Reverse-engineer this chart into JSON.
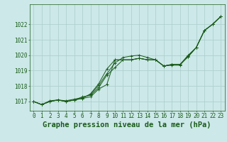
{
  "title": "Graphe pression niveau de la mer (hPa)",
  "background_color": "#cce8e8",
  "grid_color": "#aacccc",
  "line_color": "#1a5c1a",
  "marker_color": "#1a5c1a",
  "xlim": [
    -0.5,
    23.5
  ],
  "ylim": [
    1016.4,
    1023.3
  ],
  "yticks": [
    1017,
    1018,
    1019,
    1020,
    1021,
    1022
  ],
  "xticks": [
    0,
    1,
    2,
    3,
    4,
    5,
    6,
    7,
    8,
    9,
    10,
    11,
    12,
    13,
    14,
    15,
    16,
    17,
    18,
    19,
    20,
    21,
    22,
    23
  ],
  "series": [
    [
      1017.0,
      1016.8,
      1017.0,
      1017.1,
      1017.0,
      1017.1,
      1017.2,
      1017.3,
      1017.8,
      1018.1,
      1019.7,
      1019.7,
      1019.7,
      1019.8,
      1019.7,
      1019.7,
      1019.3,
      1019.4,
      1019.4,
      1019.9,
      1020.5,
      1021.6,
      1022.0,
      1022.5
    ],
    [
      1017.0,
      1016.8,
      1017.0,
      1017.1,
      1017.0,
      1017.1,
      1017.2,
      1017.5,
      1018.15,
      1019.1,
      1019.7,
      1019.7,
      1019.7,
      1019.8,
      1019.7,
      1019.7,
      1019.3,
      1019.4,
      1019.4,
      1020.0,
      1020.5,
      1021.6,
      1022.0,
      1022.5
    ],
    [
      1017.0,
      1016.8,
      1017.0,
      1017.1,
      1017.0,
      1017.1,
      1017.3,
      1017.4,
      1017.9,
      1018.7,
      1019.2,
      1019.7,
      1019.7,
      1019.8,
      1019.7,
      1019.7,
      1019.3,
      1019.4,
      1019.4,
      1019.9,
      1020.5,
      1021.6,
      1022.0,
      1022.5
    ],
    [
      1017.0,
      1016.8,
      1017.05,
      1017.1,
      1017.05,
      1017.15,
      1017.25,
      1017.45,
      1018.05,
      1018.8,
      1019.5,
      1019.85,
      1019.95,
      1020.0,
      1019.85,
      1019.7,
      1019.3,
      1019.35,
      1019.35,
      1019.95,
      1020.5,
      1021.6,
      1022.0,
      1022.5
    ]
  ],
  "title_fontsize": 7.5,
  "tick_fontsize": 5.5,
  "title_color": "#1a5c1a",
  "tick_color": "#1a5c1a"
}
